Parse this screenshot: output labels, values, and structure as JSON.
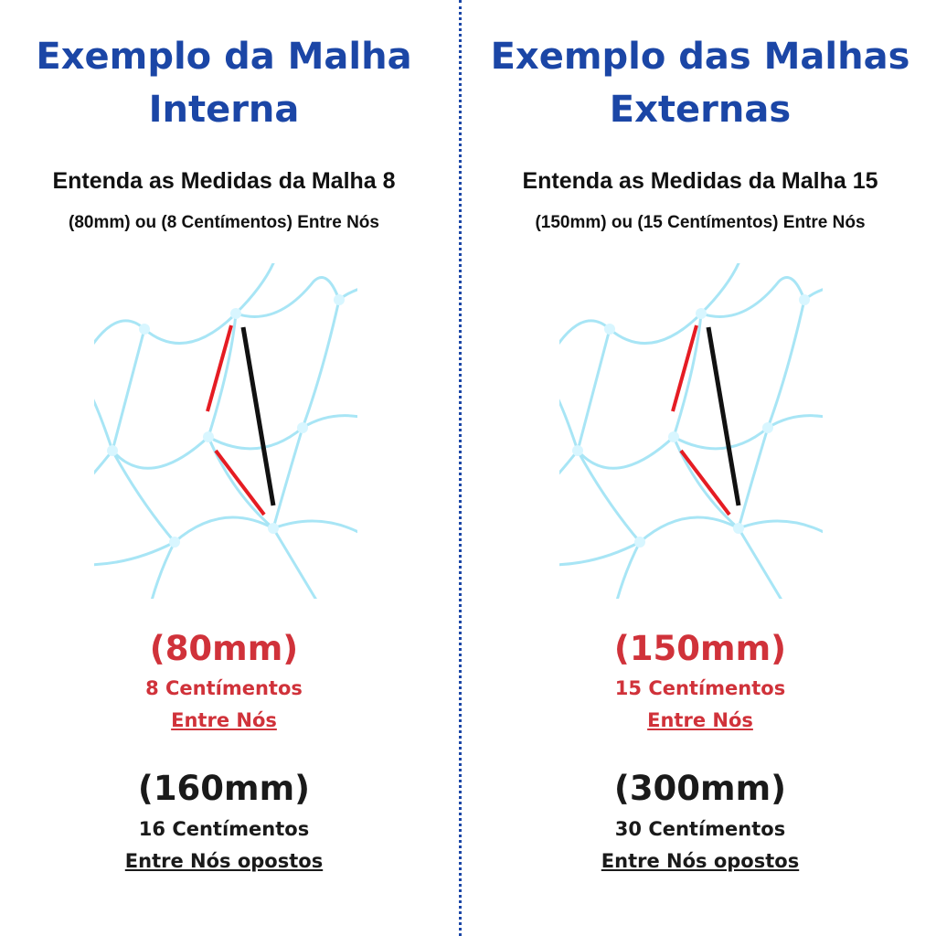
{
  "columns": [
    {
      "title_lines": [
        "Exemplo da Malha",
        "Interna"
      ],
      "subtitle": "Entenda as Medidas da Malha 8",
      "subtitle_detail": "(80mm) ou (8 Centímentos) Entre Nós",
      "knot_measure": "(80mm)",
      "knot_cm": "8 Centímentos",
      "knot_label": "Entre Nós",
      "opposite_measure": "(160mm)",
      "opposite_cm": "16 Centímentos",
      "opposite_label": "Entre Nós opostos"
    },
    {
      "title_lines": [
        "Exemplo das Malhas",
        "Externas"
      ],
      "subtitle": "Entenda as Medidas da Malha 15",
      "subtitle_detail": "(150mm) ou (15 Centímentos) Entre Nós",
      "knot_measure": "(150mm)",
      "knot_cm": "15 Centímentos",
      "knot_label": "Entre Nós",
      "opposite_measure": "(300mm)",
      "opposite_cm": "30 Centímentos",
      "opposite_label": "Entre Nós opostos"
    }
  ]
}
